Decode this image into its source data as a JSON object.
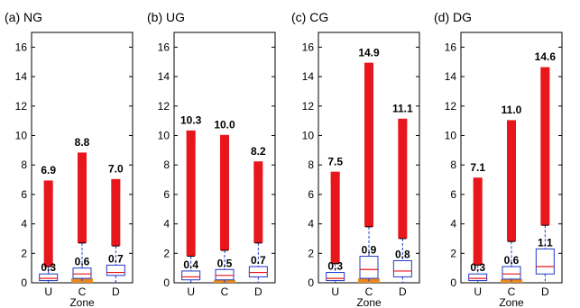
{
  "figure": {
    "colors": {
      "outlier": "#e8171d",
      "box": "#2238c7",
      "median": "#e8171d",
      "orange": "#e88a1f",
      "axis": "#000000"
    }
  },
  "chart_data": [
    {
      "type": "box",
      "title": "(a) NG",
      "categories": [
        "U",
        "C",
        "D"
      ],
      "xlabel": "Zone",
      "ylabel": "",
      "ylim": [
        0,
        17
      ],
      "yticks": [
        0,
        2,
        4,
        6,
        8,
        10,
        12,
        14,
        16
      ],
      "max_labels": [
        "6.9",
        "8.8",
        "7.0"
      ],
      "max_values": [
        6.9,
        8.8,
        7.0
      ],
      "median_labels": [
        "0.3",
        "0.6",
        "0.7"
      ],
      "boxes": [
        {
          "q1": 0.15,
          "median": 0.3,
          "q3": 0.6,
          "whisker_low": 0.0,
          "whisker_high": 1.1,
          "outlier_low": 1.1,
          "outlier_high": 6.9
        },
        {
          "q1": 0.3,
          "median": 0.6,
          "q3": 1.0,
          "whisker_low": 0.0,
          "whisker_high": 2.7,
          "outlier_low": 2.7,
          "outlier_high": 8.8
        },
        {
          "q1": 0.5,
          "median": 0.7,
          "q3": 1.2,
          "whisker_low": 0.0,
          "whisker_high": 2.5,
          "outlier_low": 2.5,
          "outlier_high": 7.0
        }
      ],
      "orange_zone": 1
    },
    {
      "type": "box",
      "title": "(b) UG",
      "categories": [
        "U",
        "C",
        "D"
      ],
      "xlabel": "",
      "ylabel": "",
      "ylim": [
        0,
        17
      ],
      "yticks": [
        0,
        2,
        4,
        6,
        8,
        10,
        12,
        14,
        16
      ],
      "max_labels": [
        "10.3",
        "10.0",
        "8.2"
      ],
      "max_values": [
        10.3,
        10.0,
        8.2
      ],
      "median_labels": [
        "0.4",
        "0.5",
        "0.7"
      ],
      "boxes": [
        {
          "q1": 0.2,
          "median": 0.4,
          "q3": 0.8,
          "whisker_low": 0.0,
          "whisker_high": 1.8,
          "outlier_low": 1.8,
          "outlier_high": 10.3
        },
        {
          "q1": 0.2,
          "median": 0.5,
          "q3": 0.9,
          "whisker_low": 0.0,
          "whisker_high": 2.2,
          "outlier_low": 2.2,
          "outlier_high": 10.0
        },
        {
          "q1": 0.4,
          "median": 0.7,
          "q3": 1.1,
          "whisker_low": 0.0,
          "whisker_high": 2.7,
          "outlier_low": 2.7,
          "outlier_high": 8.2
        }
      ],
      "orange_zone": 1
    },
    {
      "type": "box",
      "title": "(c) CG",
      "categories": [
        "U",
        "C",
        "D"
      ],
      "xlabel": "Zone",
      "ylabel": "",
      "ylim": [
        0,
        17
      ],
      "yticks": [
        0,
        2,
        4,
        6,
        8,
        10,
        12,
        14,
        16
      ],
      "max_labels": [
        "7.5",
        "14.9",
        "11.1"
      ],
      "max_values": [
        7.5,
        14.9,
        11.1
      ],
      "median_labels": [
        "0.3",
        "0.9",
        "0.8"
      ],
      "boxes": [
        {
          "q1": 0.15,
          "median": 0.3,
          "q3": 0.7,
          "whisker_low": 0.0,
          "whisker_high": 1.3,
          "outlier_low": 1.3,
          "outlier_high": 7.5
        },
        {
          "q1": 0.3,
          "median": 0.9,
          "q3": 1.8,
          "whisker_low": 0.0,
          "whisker_high": 3.8,
          "outlier_low": 3.8,
          "outlier_high": 14.9
        },
        {
          "q1": 0.4,
          "median": 0.8,
          "q3": 1.5,
          "whisker_low": 0.0,
          "whisker_high": 3.0,
          "outlier_low": 3.0,
          "outlier_high": 11.1
        }
      ],
      "orange_zone": 1
    },
    {
      "type": "box",
      "title": "(d) DG",
      "categories": [
        "U",
        "C",
        "D"
      ],
      "xlabel": "Zone",
      "ylabel": "",
      "ylim": [
        0,
        17
      ],
      "yticks": [
        0,
        2,
        4,
        6,
        8,
        10,
        12,
        14,
        16
      ],
      "max_labels": [
        "7.1",
        "11.0",
        "14.6"
      ],
      "max_values": [
        7.1,
        11.0,
        14.6
      ],
      "median_labels": [
        "0.3",
        "0.6",
        "1.1"
      ],
      "boxes": [
        {
          "q1": 0.15,
          "median": 0.3,
          "q3": 0.6,
          "whisker_low": 0.0,
          "whisker_high": 1.2,
          "outlier_low": 1.2,
          "outlier_high": 7.1
        },
        {
          "q1": 0.25,
          "median": 0.6,
          "q3": 1.1,
          "whisker_low": 0.0,
          "whisker_high": 2.8,
          "outlier_low": 2.8,
          "outlier_high": 11.0
        },
        {
          "q1": 0.6,
          "median": 1.1,
          "q3": 2.3,
          "whisker_low": 0.0,
          "whisker_high": 3.9,
          "outlier_low": 3.9,
          "outlier_high": 14.6
        }
      ],
      "orange_zone": 1
    }
  ]
}
